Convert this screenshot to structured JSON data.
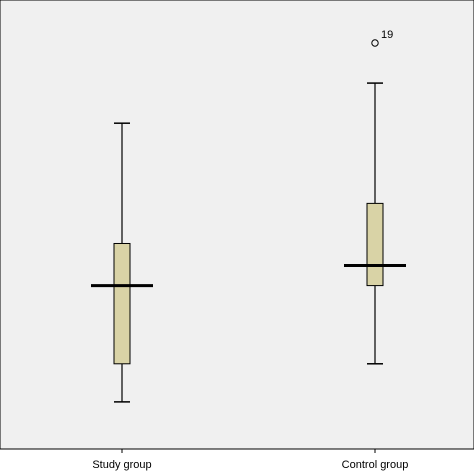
{
  "chart_data": {
    "type": "boxplot",
    "title": "",
    "xlabel": "",
    "ylabel": "",
    "ylim": [
      0,
      100
    ],
    "grid": false,
    "legend": "none",
    "colors": {
      "box_fill": "#d9d3a6",
      "plot_bg": "#f0f0f0",
      "stroke": "#000000"
    },
    "categories": [
      "Study group",
      "Control group"
    ],
    "boxes": [
      {
        "category": "Study group",
        "min": 11.5,
        "q1": 21,
        "median": 40.5,
        "q3": 51,
        "max": 81
      },
      {
        "category": "Control group",
        "min": 21,
        "q1": 40.5,
        "median": 45.5,
        "q3": 61,
        "max": 91,
        "outliers": [
          {
            "value": 101,
            "label": "19"
          }
        ]
      }
    ]
  }
}
